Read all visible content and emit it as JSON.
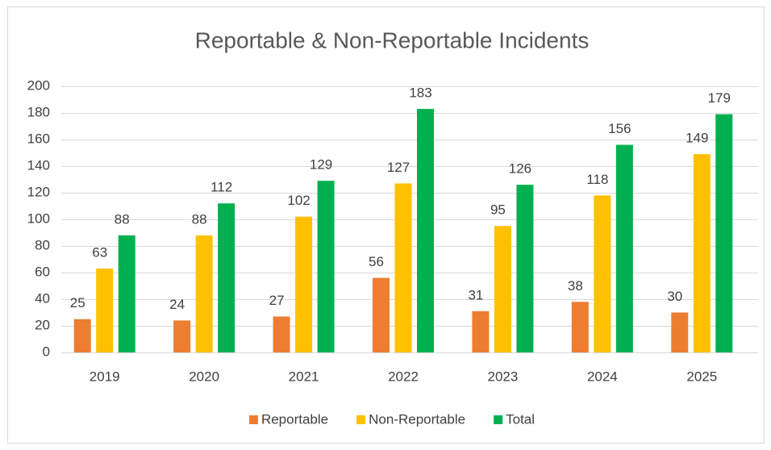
{
  "chart_data": {
    "type": "bar",
    "title": "Reportable & Non-Reportable Incidents",
    "categories": [
      "2019",
      "2020",
      "2021",
      "2022",
      "2023",
      "2024",
      "2025"
    ],
    "series": [
      {
        "name": "Reportable",
        "color": "#ed7d31",
        "values": [
          25,
          24,
          27,
          56,
          31,
          38,
          30
        ]
      },
      {
        "name": "Non-Reportable",
        "color": "#ffc000",
        "values": [
          63,
          88,
          102,
          127,
          95,
          118,
          149
        ]
      },
      {
        "name": "Total",
        "color": "#00b050",
        "values": [
          88,
          112,
          129,
          183,
          126,
          156,
          179
        ]
      }
    ],
    "ylim": [
      0,
      200
    ],
    "yticks": [
      0,
      20,
      40,
      60,
      80,
      100,
      120,
      140,
      160,
      180,
      200
    ],
    "grid": true,
    "legend": "bottom"
  }
}
